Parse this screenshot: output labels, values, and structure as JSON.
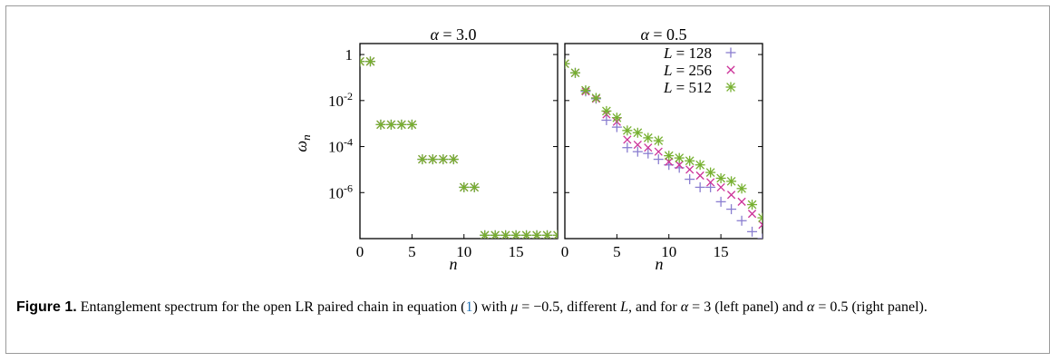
{
  "figure": {
    "ylabel_symbol": "ω",
    "ylabel_sub": "n",
    "xlabel": "n"
  },
  "chart_data": [
    {
      "type": "scatter",
      "title": "α = 3.0",
      "title_symbol": "α",
      "title_value": "= 3.0",
      "xlabel": "n",
      "ylabel": "ωn",
      "xlim": [
        0,
        19
      ],
      "ylim": [
        1e-08,
        3
      ],
      "log_y": true,
      "x_ticks": [
        0,
        5,
        10,
        15
      ],
      "y_ticks": [
        1,
        0.01,
        0.0001,
        1e-06
      ],
      "y_tick_labels": [
        {
          "base": "1",
          "exp": ""
        },
        {
          "base": "10",
          "exp": "-2"
        },
        {
          "base": "10",
          "exp": "-4"
        },
        {
          "base": "10",
          "exp": "-6"
        }
      ],
      "legend": "none",
      "grid": false,
      "series": [
        {
          "color": "#8a7ed0",
          "marker": "plus",
          "x": [
            0,
            1,
            2,
            3,
            4,
            5,
            6,
            7,
            8,
            9,
            10,
            11,
            12,
            13,
            14,
            15,
            16,
            17,
            18,
            19
          ],
          "y": [
            0.5,
            0.5,
            0.0009,
            0.0009,
            0.0009,
            0.0009,
            2.8e-05,
            2.8e-05,
            2.8e-05,
            2.8e-05,
            1.7e-06,
            1.7e-06,
            1.4e-08,
            1.4e-08,
            1.4e-08,
            1.4e-08,
            1.4e-08,
            1.4e-08,
            1.4e-08,
            1.4e-08
          ]
        },
        {
          "color": "#cc3399",
          "marker": "cross",
          "x": [
            0,
            1,
            2,
            3,
            4,
            5,
            6,
            7,
            8,
            9,
            10,
            11,
            12,
            13,
            14,
            15,
            16,
            17,
            18,
            19
          ],
          "y": [
            0.5,
            0.5,
            0.0009,
            0.0009,
            0.0009,
            0.0009,
            2.8e-05,
            2.8e-05,
            2.8e-05,
            2.8e-05,
            1.7e-06,
            1.7e-06,
            1.4e-08,
            1.4e-08,
            1.4e-08,
            1.4e-08,
            1.4e-08,
            1.4e-08,
            1.4e-08,
            1.4e-08
          ]
        },
        {
          "color": "#76b030",
          "marker": "star",
          "x": [
            0,
            1,
            2,
            3,
            4,
            5,
            6,
            7,
            8,
            9,
            10,
            11,
            12,
            13,
            14,
            15,
            16,
            17,
            18,
            19
          ],
          "y": [
            0.5,
            0.5,
            0.0009,
            0.0009,
            0.0009,
            0.0009,
            2.8e-05,
            2.8e-05,
            2.8e-05,
            2.8e-05,
            1.7e-06,
            1.7e-06,
            1.4e-08,
            1.4e-08,
            1.4e-08,
            1.4e-08,
            1.4e-08,
            1.4e-08,
            1.4e-08,
            1.4e-08
          ]
        }
      ]
    },
    {
      "type": "scatter",
      "title": "α = 0.5",
      "title_symbol": "α",
      "title_value": "= 0.5",
      "xlabel": "n",
      "xlim": [
        0,
        19
      ],
      "ylim": [
        1e-08,
        3
      ],
      "log_y": true,
      "x_ticks": [
        0,
        5,
        10,
        15
      ],
      "legend": "top-right",
      "grid": false,
      "series": [
        {
          "name": "L = 128",
          "name_var": "L",
          "name_value": "= 128",
          "color": "#8a7ed0",
          "marker": "plus",
          "x": [
            0,
            1,
            2,
            3,
            4,
            5,
            6,
            7,
            8,
            9,
            10,
            11,
            12,
            13,
            14,
            15,
            16,
            17,
            18,
            19
          ],
          "y": [
            0.4,
            0.16,
            0.025,
            0.012,
            0.0014,
            0.0007,
            9e-05,
            6e-05,
            5e-05,
            2.8e-05,
            1.6e-05,
            1.2e-05,
            3.8e-06,
            1.7e-06,
            1.7e-06,
            4e-07,
            1.9e-07,
            6e-08,
            2e-08,
            1e-08
          ]
        },
        {
          "name": "L = 256",
          "name_var": "L",
          "name_value": "= 256",
          "color": "#cc3399",
          "marker": "cross",
          "x": [
            0,
            1,
            2,
            3,
            4,
            5,
            6,
            7,
            8,
            9,
            10,
            11,
            12,
            13,
            14,
            15,
            16,
            17,
            18,
            19
          ],
          "y": [
            0.4,
            0.16,
            0.025,
            0.012,
            0.0025,
            0.0012,
            0.0002,
            0.00012,
            9e-05,
            6e-05,
            2.2e-05,
            1.6e-05,
            1e-05,
            5.5e-06,
            2.8e-06,
            1.7e-06,
            8e-07,
            4e-07,
            1.2e-07,
            4e-08
          ]
        },
        {
          "name": "L = 512",
          "name_var": "L",
          "name_value": "= 512",
          "color": "#76b030",
          "marker": "star",
          "x": [
            0,
            1,
            2,
            3,
            4,
            5,
            6,
            7,
            8,
            9,
            10,
            11,
            12,
            13,
            14,
            15,
            16,
            17,
            18,
            19
          ],
          "y": [
            0.4,
            0.16,
            0.028,
            0.013,
            0.0035,
            0.0018,
            0.0005,
            0.0004,
            0.00024,
            0.00018,
            4e-05,
            3.2e-05,
            2.4e-05,
            1.6e-05,
            7.5e-06,
            4.2e-06,
            3.1e-06,
            1.5e-06,
            3e-07,
            8e-08
          ]
        }
      ]
    }
  ],
  "caption": {
    "label": "Figure 1.",
    "t1": " Entanglement spectrum for the open LR paired chain in equation (",
    "ref": "1",
    "t2": ") with ",
    "mu": "μ",
    "mu_val": " = −0.5, different ",
    "L": "L",
    "t3": ", and for ",
    "alpha1": "α",
    "a1_val": " = 3 (left panel) and ",
    "alpha2": "α",
    "a2_val": " = 0.5 (right panel)."
  }
}
